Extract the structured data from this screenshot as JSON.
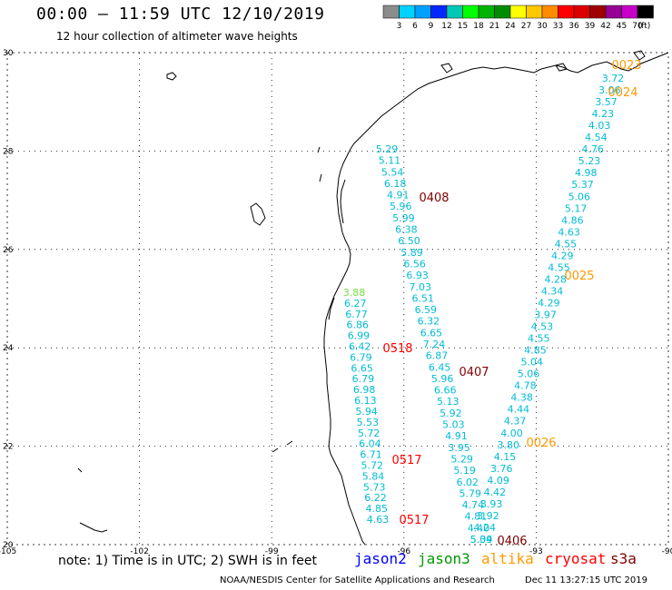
{
  "title": "00:00 – 11:59 UTC 12/10/2019",
  "subtitle": "12 hour collection of altimeter wave heights",
  "colorbar": {
    "colors": [
      "#8c8c8c",
      "#00d2ff",
      "#00a0ff",
      "#0028ff",
      "#00c8b4",
      "#00ff00",
      "#00b400",
      "#008c00",
      "#ffff00",
      "#ffc800",
      "#ff8c00",
      "#ff0000",
      "#dc0000",
      "#a00000",
      "#960096",
      "#c800c8",
      "#000000"
    ],
    "labels": [
      "3",
      "6",
      "9",
      "12",
      "15",
      "18",
      "21",
      "24",
      "27",
      "30",
      "33",
      "36",
      "39",
      "42",
      "45",
      "70",
      "(ft)"
    ]
  },
  "map": {
    "lon_labels": [
      "-105",
      "-102",
      "-99",
      "-96",
      "-93",
      "-90"
    ],
    "lat_labels": [
      "30",
      "28",
      "26",
      "24",
      "22",
      "20"
    ],
    "coastline_color": "#000000",
    "grid_color": "#000000"
  },
  "passes": [
    {
      "label": "0023",
      "sat": "altika",
      "color": "#ff9900"
    },
    {
      "label": "0024",
      "sat": "altika",
      "color": "#ff9900"
    },
    {
      "label": "0408",
      "sat": "s3a",
      "color": "#800000"
    },
    {
      "label": "0025",
      "sat": "altika",
      "color": "#ff9900"
    },
    {
      "label": "0518",
      "sat": "cryosat",
      "color": "#ff0000"
    },
    {
      "label": "0407",
      "sat": "s3a",
      "color": "#800000"
    },
    {
      "label": "0026",
      "sat": "altika",
      "color": "#ff9900"
    },
    {
      "label": "0517",
      "sat": "cryosat",
      "color": "#ff0000"
    },
    {
      "label": "0517",
      "sat": "cryosat",
      "color": "#ff0000"
    },
    {
      "label": "0406",
      "sat": "s3a",
      "color": "#800000"
    }
  ],
  "track_west": {
    "color": "#00bcd4",
    "values": [
      "5.29",
      "5.11",
      "5.54",
      "6.18",
      "4.91",
      "5.96",
      "5.99",
      "6.38",
      "6.50",
      "5.89",
      "6.56",
      "6.93",
      "7.03",
      "6.51",
      "6.59",
      "6.32",
      "6.65",
      "7.24",
      "6.87",
      "6.45",
      "5.96",
      "6.66",
      "5.13",
      "5.92",
      "5.03",
      "4.91",
      "3.95",
      "5.29",
      "5.19",
      "6.02",
      "5.79",
      "4.74",
      "4.81",
      "4.40",
      "5.34"
    ]
  },
  "track_coast": {
    "color": "#00bcd4",
    "first_value": "3.88",
    "first_color": "#77dd44",
    "values": [
      "6.27",
      "6.77",
      "6.86",
      "6.99",
      "6.42",
      "6.79",
      "6.65",
      "6.79",
      "6.98",
      "6.13",
      "5.94",
      "5.53",
      "5.72",
      "6.04",
      "6.71",
      "5.72",
      "5.84",
      "5.73",
      "6.22",
      "4.85",
      "4.63"
    ]
  },
  "track_east": {
    "color": "#00bcd4",
    "values": [
      "3.72",
      "3.06",
      "3.57",
      "4.23",
      "4.03",
      "4.54",
      "4.76",
      "5.23",
      "4.98",
      "5.37",
      "5.06",
      "5.17",
      "4.86",
      "4.63",
      "4.55",
      "4.29",
      "4.55",
      "4.28",
      "4.34",
      "4.29",
      "3.97",
      "4.53",
      "4.55",
      "4.85",
      "5.04",
      "5.06",
      "4.78",
      "4.38",
      "4.44",
      "4.37",
      "4.00",
      "3.80",
      "4.15",
      "3.76",
      "4.09",
      "4.42",
      "3.93",
      "3.92",
      "4.24",
      "5.09"
    ]
  },
  "note": "note: 1) Time is in UTC; 2) SWH is in feet",
  "satellites": [
    {
      "name": "jason2",
      "color": "#0000ff"
    },
    {
      "name": "jason3",
      "color": "#009900"
    },
    {
      "name": "altika",
      "color": "#ff9900"
    },
    {
      "name": "cryosat",
      "color": "#ff0000"
    },
    {
      "name": "s3a",
      "color": "#800000"
    }
  ],
  "credit": "NOAA/NESDIS Center for Satellite Applications and Research",
  "generated": "Dec 11 13:27:15 UTC 2019"
}
